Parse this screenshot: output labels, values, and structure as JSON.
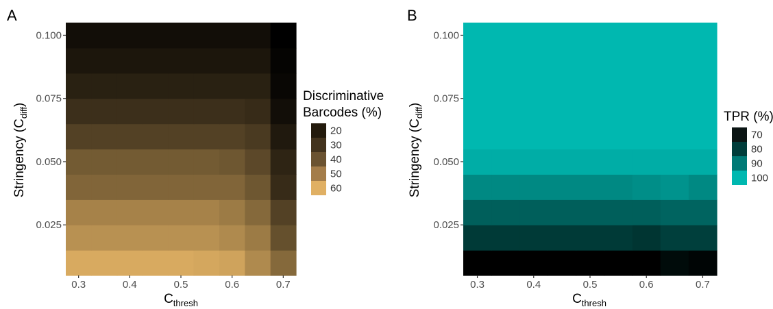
{
  "chart_data": [
    {
      "type": "heatmap",
      "panel": "A",
      "xlabel": {
        "main": "C",
        "sub": "thresh"
      },
      "ylabel": {
        "main": "Stringency (C",
        "sub": "diff",
        "close": ")"
      },
      "x": [
        0.3,
        0.35,
        0.4,
        0.45,
        0.5,
        0.55,
        0.6,
        0.65,
        0.7
      ],
      "y": [
        0.01,
        0.02,
        0.03,
        0.04,
        0.05,
        0.06,
        0.07,
        0.08,
        0.09,
        0.1
      ],
      "x_ticks": [
        {
          "value": 0.3,
          "label": "0.3"
        },
        {
          "value": 0.4,
          "label": "0.4"
        },
        {
          "value": 0.5,
          "label": "0.5"
        },
        {
          "value": 0.6,
          "label": "0.6"
        },
        {
          "value": 0.7,
          "label": "0.7"
        }
      ],
      "y_ticks": [
        {
          "value": 0.025,
          "label": "0.025"
        },
        {
          "value": 0.05,
          "label": "0.050"
        },
        {
          "value": 0.075,
          "label": "0.075"
        },
        {
          "value": 0.1,
          "label": "0.100"
        }
      ],
      "xlim": [
        0.275,
        0.725
      ],
      "ylim": [
        0.005,
        0.105
      ],
      "values": [
        [
          62,
          62,
          62,
          62,
          62,
          61,
          60,
          53,
          44
        ],
        [
          55,
          55,
          55,
          55,
          55,
          55,
          53,
          49,
          37
        ],
        [
          51,
          51,
          51,
          51,
          51,
          51,
          49,
          44,
          33
        ],
        [
          43,
          43,
          43,
          43,
          43,
          43,
          43,
          39,
          27
        ],
        [
          40,
          40,
          40,
          40,
          40,
          40,
          39,
          35,
          25
        ],
        [
          33,
          33,
          33,
          33,
          33,
          33,
          33,
          31,
          22
        ],
        [
          28,
          28,
          28,
          28,
          28,
          28,
          28,
          27,
          19
        ],
        [
          24,
          24,
          24,
          24,
          24,
          24,
          24,
          24,
          17
        ],
        [
          21,
          21,
          21,
          21,
          21,
          21,
          21,
          21,
          16
        ],
        [
          19,
          19,
          19,
          19,
          19,
          19,
          19,
          19,
          15
        ]
      ],
      "colorscale": {
        "min": 15,
        "max": 65,
        "low": "#000000",
        "high": "#e6b566"
      },
      "legend": {
        "title_lines": [
          "Discriminative",
          "Barcodes (%)"
        ],
        "entries": [
          {
            "label": "20",
            "color": "#231a0c"
          },
          {
            "label": "30",
            "color": "#43331d"
          },
          {
            "label": "40",
            "color": "#6b5331"
          },
          {
            "label": "50",
            "color": "#a47d4a"
          },
          {
            "label": "60",
            "color": "#e0b064"
          }
        ]
      }
    },
    {
      "type": "heatmap",
      "panel": "B",
      "xlabel": {
        "main": "C",
        "sub": "thresh"
      },
      "ylabel": {
        "main": "Stringency (C",
        "sub": "diff",
        "close": ")"
      },
      "x": [
        0.3,
        0.35,
        0.4,
        0.45,
        0.5,
        0.55,
        0.6,
        0.65,
        0.7
      ],
      "y": [
        0.01,
        0.02,
        0.03,
        0.04,
        0.05,
        0.06,
        0.07,
        0.08,
        0.09,
        0.1
      ],
      "x_ticks": [
        {
          "value": 0.3,
          "label": "0.3"
        },
        {
          "value": 0.4,
          "label": "0.4"
        },
        {
          "value": 0.5,
          "label": "0.5"
        },
        {
          "value": 0.6,
          "label": "0.6"
        },
        {
          "value": 0.7,
          "label": "0.7"
        }
      ],
      "y_ticks": [
        {
          "value": 0.025,
          "label": "0.025"
        },
        {
          "value": 0.05,
          "label": "0.050"
        },
        {
          "value": 0.075,
          "label": "0.075"
        },
        {
          "value": 0.1,
          "label": "0.100"
        }
      ],
      "xlim": [
        0.275,
        0.725
      ],
      "ylim": [
        0.005,
        0.105
      ],
      "values": [
        [
          65,
          65,
          65,
          65,
          65,
          65,
          65,
          67,
          66
        ],
        [
          76,
          76,
          76,
          76,
          76,
          76,
          75,
          77,
          77
        ],
        [
          83,
          83,
          83,
          83,
          83,
          83,
          83,
          84,
          84
        ],
        [
          91,
          91,
          91,
          91,
          91,
          91,
          92,
          93,
          91
        ],
        [
          98,
          98,
          98,
          98,
          98,
          98,
          98,
          98,
          98
        ],
        [
          100,
          100,
          100,
          100,
          100,
          100,
          100,
          100,
          100
        ],
        [
          100,
          100,
          100,
          100,
          100,
          100,
          100,
          100,
          100
        ],
        [
          100,
          100,
          100,
          100,
          100,
          100,
          100,
          100,
          100
        ],
        [
          100,
          100,
          100,
          100,
          100,
          100,
          100,
          100,
          100
        ],
        [
          100,
          100,
          100,
          100,
          100,
          100,
          100,
          100,
          100
        ]
      ],
      "colorscale": {
        "min": 65,
        "max": 100,
        "low": "#000000",
        "high": "#00b8b0"
      },
      "legend": {
        "title_lines": [
          "TPR (%)"
        ],
        "entries": [
          {
            "label": "70",
            "color": "#0b1514"
          },
          {
            "label": "80",
            "color": "#003d3b"
          },
          {
            "label": "90",
            "color": "#007a76"
          },
          {
            "label": "100",
            "color": "#00b8b0"
          }
        ]
      }
    }
  ]
}
